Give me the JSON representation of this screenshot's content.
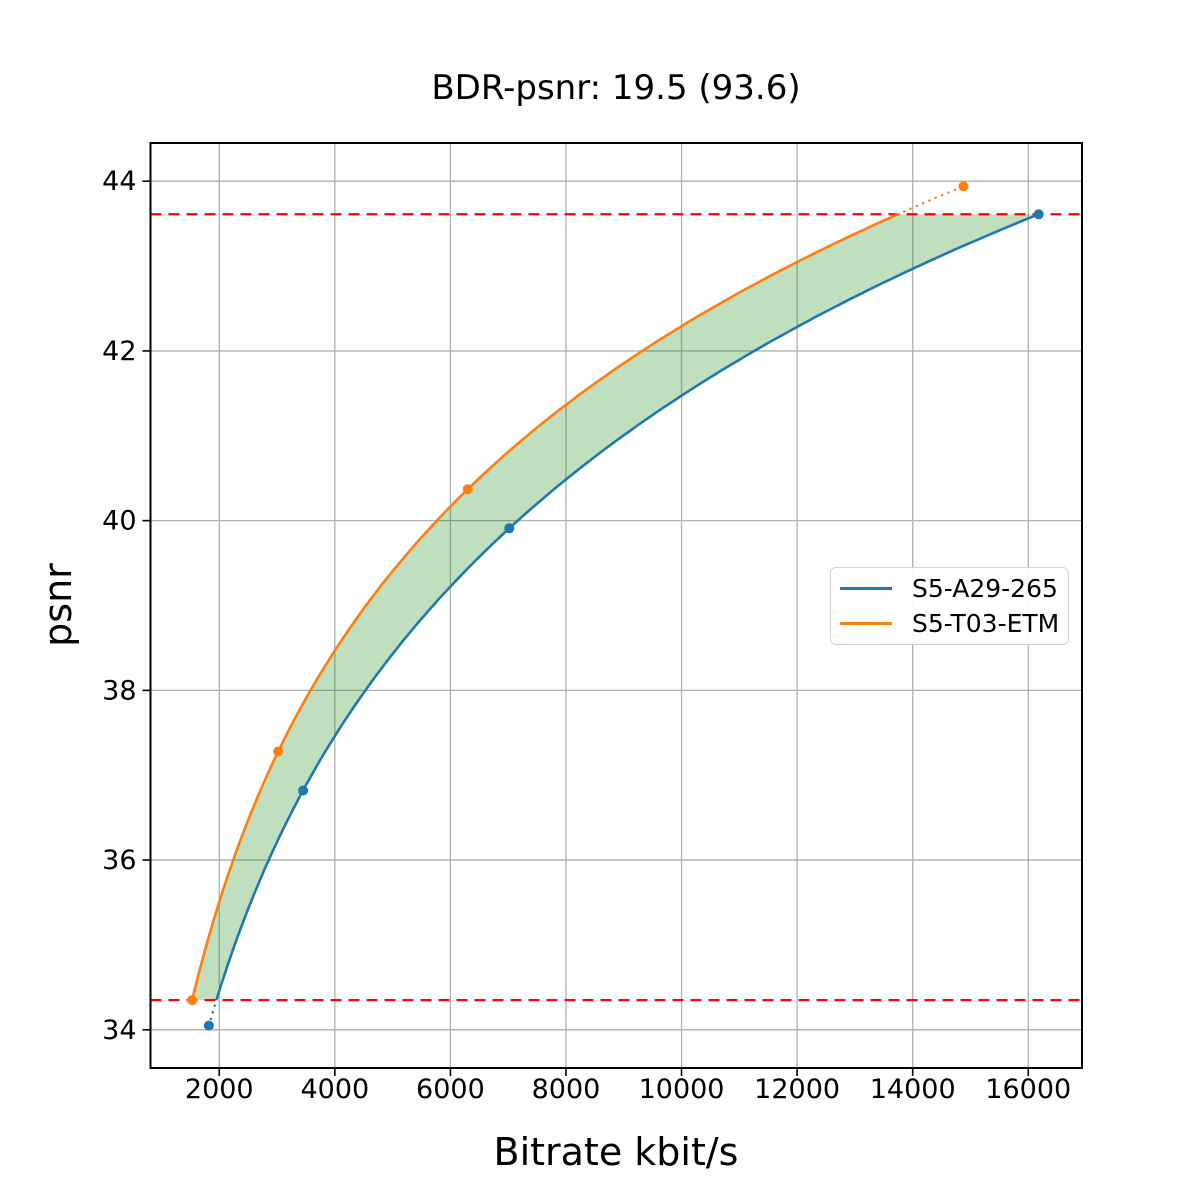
{
  "chart_data": {
    "type": "line",
    "title": "BDR-psnr: 19.5 (93.6)",
    "xlabel": "Bitrate kbit/s",
    "ylabel": "psnr",
    "xlim": [
      810,
      16930
    ],
    "ylim": [
      33.55,
      44.45
    ],
    "x_ticks": [
      2000,
      4000,
      6000,
      8000,
      10000,
      12000,
      14000,
      16000
    ],
    "y_ticks": [
      34,
      36,
      38,
      40,
      42,
      44
    ],
    "grid": true,
    "grid_color": "#b0b0b0",
    "legend_position": "center-right",
    "series": [
      {
        "name": "S5-A29-265",
        "color": "#1f77b4",
        "marker": "circle",
        "line_style": "solid-with-dotted-extrapolation",
        "points": [
          [
            1820,
            34.05
          ],
          [
            3450,
            36.82
          ],
          [
            7020,
            39.91
          ],
          [
            16180,
            43.61
          ]
        ]
      },
      {
        "name": "S5-T03-ETM",
        "color": "#ff7f0e",
        "marker": "circle",
        "line_style": "solid-with-dotted-extrapolation",
        "points": [
          [
            1530,
            34.35
          ],
          [
            3020,
            37.28
          ],
          [
            6300,
            40.37
          ],
          [
            14880,
            43.94
          ]
        ]
      }
    ],
    "overlap_hlines": {
      "color": "#ff0000",
      "style": "dashed",
      "values": [
        34.35,
        43.61
      ]
    },
    "fill_between": {
      "color": "rgba(0,128,0,0.25)",
      "description": "shaded BD area between the two rate-distortion curves inside the overlap interval"
    }
  }
}
